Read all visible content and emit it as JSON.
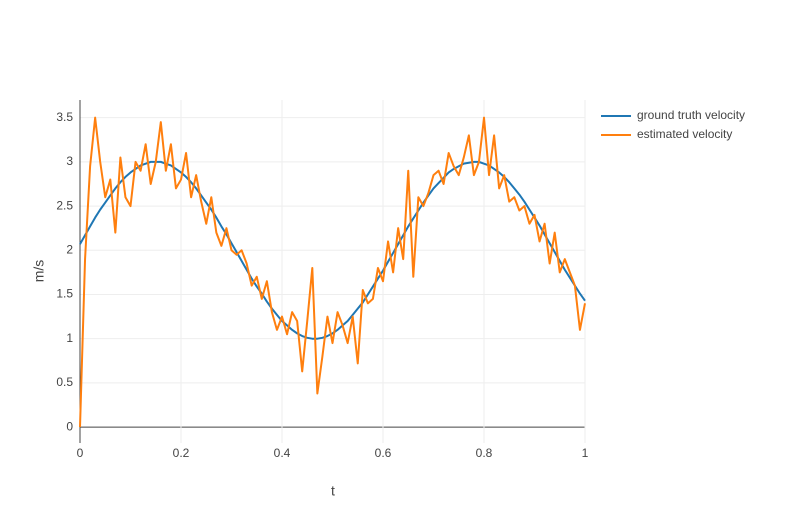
{
  "chart_data": {
    "type": "line",
    "xlabel": "t",
    "ylabel": "m/s",
    "x": [
      0,
      0.01,
      0.02,
      0.03,
      0.04,
      0.05,
      0.06,
      0.07,
      0.08,
      0.09,
      0.1,
      0.11,
      0.12,
      0.13,
      0.14,
      0.15,
      0.16,
      0.17,
      0.18,
      0.19,
      0.2,
      0.21,
      0.22,
      0.23,
      0.24,
      0.25,
      0.26,
      0.27,
      0.28,
      0.29,
      0.3,
      0.31,
      0.32,
      0.33,
      0.34,
      0.35,
      0.36,
      0.37,
      0.38,
      0.39,
      0.4,
      0.41,
      0.42,
      0.43,
      0.44,
      0.45,
      0.46,
      0.47,
      0.48,
      0.49,
      0.5,
      0.51,
      0.52,
      0.53,
      0.54,
      0.55,
      0.56,
      0.57,
      0.58,
      0.59,
      0.6,
      0.61,
      0.62,
      0.63,
      0.64,
      0.65,
      0.66,
      0.67,
      0.68,
      0.69,
      0.7,
      0.71,
      0.72,
      0.73,
      0.74,
      0.75,
      0.76,
      0.77,
      0.78,
      0.79,
      0.8,
      0.81,
      0.82,
      0.83,
      0.84,
      0.85,
      0.86,
      0.87,
      0.88,
      0.89,
      0.9,
      0.91,
      0.92,
      0.93,
      0.94,
      0.95,
      0.96,
      0.97,
      0.98,
      0.99,
      1
    ],
    "series": [
      {
        "name": "ground truth velocity",
        "color": "#1f77b4",
        "values": [
          2.07,
          2.17,
          2.27,
          2.37,
          2.46,
          2.54,
          2.62,
          2.7,
          2.77,
          2.83,
          2.88,
          2.92,
          2.96,
          2.98,
          3.0,
          3.0,
          3.0,
          2.98,
          2.96,
          2.92,
          2.88,
          2.83,
          2.77,
          2.7,
          2.62,
          2.54,
          2.46,
          2.37,
          2.27,
          2.18,
          2.08,
          1.98,
          1.88,
          1.78,
          1.68,
          1.59,
          1.51,
          1.42,
          1.34,
          1.27,
          1.2,
          1.15,
          1.1,
          1.06,
          1.03,
          1.01,
          1.0,
          1.0,
          1.01,
          1.03,
          1.06,
          1.1,
          1.15,
          1.2,
          1.27,
          1.34,
          1.41,
          1.5,
          1.59,
          1.68,
          1.77,
          1.87,
          1.97,
          2.07,
          2.17,
          2.27,
          2.36,
          2.45,
          2.54,
          2.62,
          2.7,
          2.76,
          2.82,
          2.88,
          2.92,
          2.95,
          2.98,
          2.99,
          3.0,
          3.0,
          2.98,
          2.96,
          2.92,
          2.88,
          2.83,
          2.77,
          2.7,
          2.63,
          2.55,
          2.46,
          2.37,
          2.28,
          2.18,
          2.08,
          1.98,
          1.88,
          1.78,
          1.69,
          1.6,
          1.51,
          1.43
        ]
      },
      {
        "name": "estimated velocity",
        "color": "#ff7f0e",
        "values": [
          0,
          1.9,
          2.95,
          3.5,
          3.0,
          2.6,
          2.8,
          2.2,
          3.05,
          2.6,
          2.5,
          3.0,
          2.9,
          3.2,
          2.75,
          3.0,
          3.45,
          2.9,
          3.2,
          2.7,
          2.8,
          3.1,
          2.6,
          2.85,
          2.55,
          2.3,
          2.6,
          2.2,
          2.05,
          2.25,
          2.0,
          1.95,
          2.0,
          1.85,
          1.6,
          1.7,
          1.45,
          1.65,
          1.3,
          1.1,
          1.25,
          1.05,
          1.3,
          1.2,
          0.63,
          1.2,
          1.8,
          0.38,
          0.8,
          1.25,
          0.95,
          1.3,
          1.15,
          0.95,
          1.25,
          0.72,
          1.55,
          1.4,
          1.45,
          1.8,
          1.65,
          2.1,
          1.75,
          2.25,
          1.9,
          2.9,
          1.7,
          2.6,
          2.5,
          2.65,
          2.85,
          2.9,
          2.75,
          3.1,
          2.95,
          2.85,
          3.05,
          3.3,
          2.85,
          3.0,
          3.5,
          2.85,
          3.3,
          2.7,
          2.85,
          2.55,
          2.6,
          2.45,
          2.5,
          2.3,
          2.4,
          2.1,
          2.3,
          1.85,
          2.2,
          1.75,
          1.9,
          1.75,
          1.6,
          1.1,
          1.4
        ]
      }
    ],
    "xlim": [
      0,
      1
    ],
    "xticks": [
      0,
      0.2,
      0.4,
      0.6,
      0.8,
      1
    ],
    "ylim": [
      -0.18,
      3.7
    ],
    "yticks": [
      0,
      0.5,
      1,
      1.5,
      2,
      2.5,
      3,
      3.5
    ],
    "grid": true,
    "legend": "right"
  }
}
